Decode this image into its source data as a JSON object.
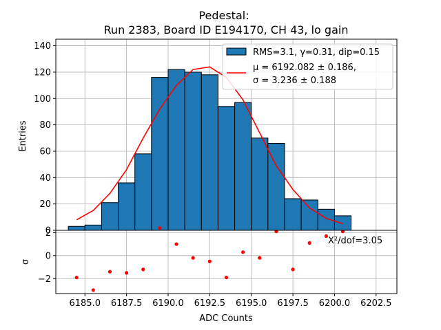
{
  "chart_data": {
    "type": "histogram",
    "title_line1": "Pedestal:",
    "title_line2": "Run 2383, Board ID E194170, CH 43, lo gain",
    "xlabel": "ADC Counts",
    "ylabel_top": "Entries",
    "ylabel_bottom": "σ",
    "xlim": [
      6183.25,
      6203.75
    ],
    "ylim_top": [
      0,
      145
    ],
    "ylim_bottom": [
      -3.3,
      2.2
    ],
    "x_ticks": [
      6185.0,
      6187.5,
      6190.0,
      6192.5,
      6195.0,
      6197.5,
      6200.0,
      6202.5
    ],
    "x_tick_labels": [
      "6185.0",
      "6187.5",
      "6190.0",
      "6192.5",
      "6195.0",
      "6197.5",
      "6200.0",
      "6202.5"
    ],
    "y_ticks_top": [
      0,
      20,
      40,
      60,
      80,
      100,
      120,
      140
    ],
    "y_tick_labels_top": [
      "0",
      "20",
      "40",
      "60",
      "80",
      "100",
      "120",
      "140"
    ],
    "y_ticks_bottom": [
      -2,
      0,
      2
    ],
    "y_tick_labels_bottom": [
      "−2",
      "0",
      "2"
    ],
    "bin_edges": [
      6184,
      6185,
      6186,
      6187,
      6188,
      6189,
      6190,
      6191,
      6192,
      6193,
      6194,
      6195,
      6196,
      6197,
      6198,
      6199,
      6200,
      6201
    ],
    "bin_values": [
      3,
      4,
      21,
      36,
      58,
      116,
      122,
      120,
      118,
      94,
      97,
      70,
      66,
      24,
      23,
      16,
      11
    ],
    "fit_x": [
      6184.5,
      6185.5,
      6186.5,
      6187.5,
      6188.5,
      6189.5,
      6190.5,
      6191.5,
      6192.5,
      6193.5,
      6194.5,
      6195.5,
      6196.5,
      6197.5,
      6198.5,
      6199.5,
      6200.5
    ],
    "fit_y": [
      8,
      15,
      28,
      46,
      70,
      92,
      110,
      122,
      124,
      116,
      99,
      74,
      49,
      31,
      17,
      9,
      5
    ],
    "residuals": [
      -1.9,
      -3.0,
      -1.4,
      -1.5,
      -1.2,
      2.4,
      1.0,
      -0.2,
      -0.5,
      -1.9,
      0.3,
      -0.2,
      2.1,
      -1.2,
      1.1,
      1.7,
      2.1
    ],
    "legend": {
      "hist_label": "RMS=3.1, γ=0.31, dip=0.15",
      "fit_label_line1": "μ = 6192.082 ± 0.186,",
      "fit_label_line2": "σ = 3.236 ± 0.188"
    },
    "annotation": "X²/dof=3.05",
    "colors": {
      "bar_fill": "#1f77b4",
      "bar_edge": "#000000",
      "fit_line": "#ff0000",
      "residual_points": "#ff0000",
      "grid": "#b0b0b0"
    }
  }
}
